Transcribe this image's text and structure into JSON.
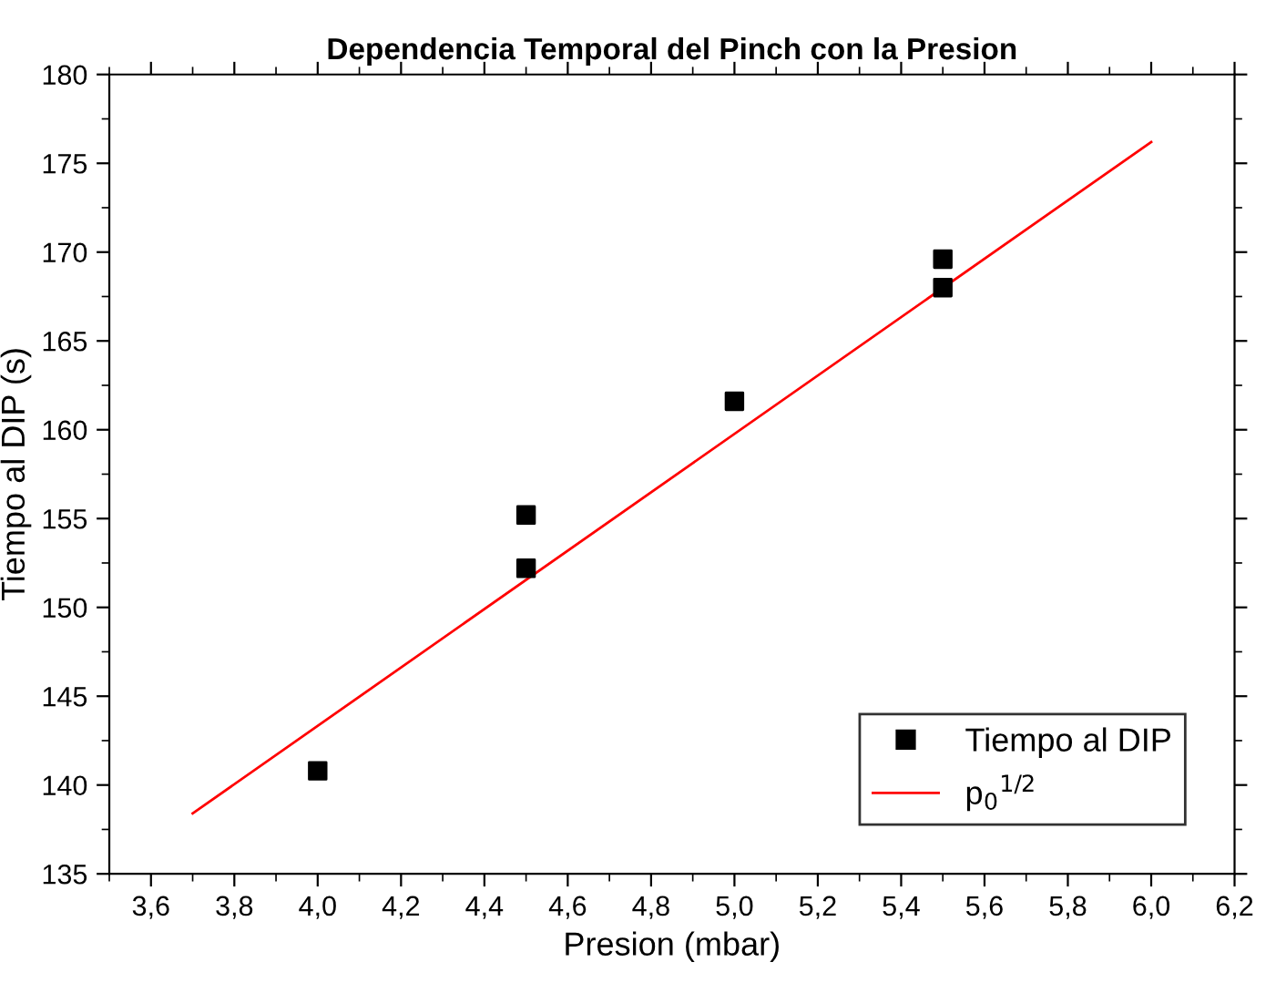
{
  "chart_data": {
    "type": "scatter",
    "title": "Dependencia Temporal del Pinch con la Presion",
    "xlabel": "Presion (mbar)",
    "ylabel": "Tiempo al DIP (s)",
    "series": [
      {
        "name": "Tiempo al DIP",
        "color": "#000000",
        "marker": "square",
        "x": [
          4.0,
          4.5,
          4.5,
          5.0,
          5.5,
          5.5
        ],
        "values": [
          140.8,
          155.2,
          152.2,
          161.6,
          169.6,
          168.0
        ]
      },
      {
        "name": "p$_{0}$$^{1/2}$",
        "type": "line",
        "color": "#ff0000",
        "marker": "none",
        "line_style": "solid",
        "x": [
          3.7,
          6.0
        ],
        "values": [
          138.4,
          176.2
        ]
      }
    ],
    "xlim": [
      3.5,
      6.2
    ],
    "xticks": [
      {
        "value": 3.6,
        "label": "3,6"
      },
      {
        "value": 3.8,
        "label": "3,8"
      },
      {
        "value": 4.0,
        "label": "4,0"
      },
      {
        "value": 4.2,
        "label": "4,2"
      },
      {
        "value": 4.4,
        "label": "4,4"
      },
      {
        "value": 4.6,
        "label": "4,6"
      },
      {
        "value": 4.8,
        "label": "4,8"
      },
      {
        "value": 5.0,
        "label": "5,0"
      },
      {
        "value": 5.2,
        "label": "5,2"
      },
      {
        "value": 5.4,
        "label": "5,4"
      },
      {
        "value": 5.6,
        "label": "5,6"
      },
      {
        "value": 5.8,
        "label": "5,8"
      },
      {
        "value": 6.0,
        "label": "6,0"
      },
      {
        "value": 6.2,
        "label": "6,2"
      }
    ],
    "ylim": [
      135,
      180
    ],
    "yticks": [
      135,
      140,
      145,
      150,
      155,
      160,
      165,
      170,
      175,
      180
    ],
    "grid": false,
    "legend": "bottom right"
  }
}
